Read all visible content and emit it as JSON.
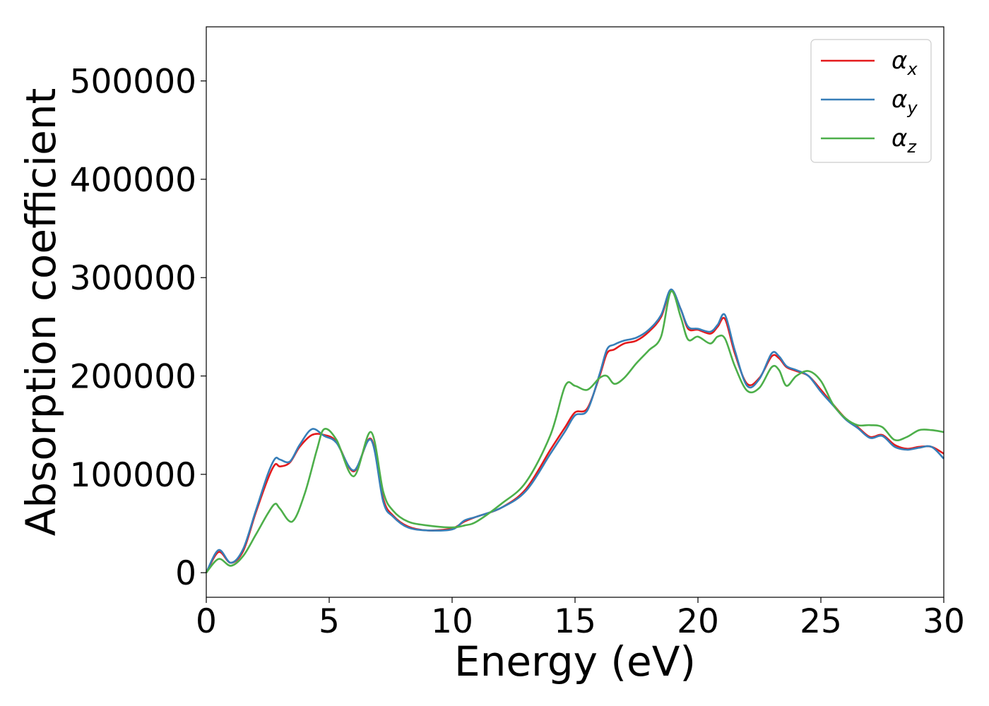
{
  "chart_data": {
    "type": "line",
    "xlabel": "Energy (eV)",
    "ylabel": "Absorption coefficient",
    "xlim": [
      0,
      30
    ],
    "ylim": [
      -25000,
      555000
    ],
    "x_ticks": [
      "0",
      "5",
      "10",
      "15",
      "20",
      "25",
      "30"
    ],
    "y_ticks": [
      "0",
      "100000",
      "200000",
      "300000",
      "400000",
      "500000"
    ],
    "grid": false,
    "legend_position": "top-right",
    "series": [
      {
        "name": "α",
        "subscript": "x",
        "color": "#e41a1c",
        "x": [
          0,
          0.5,
          1.0,
          1.5,
          2.0,
          2.5,
          2.8,
          3.0,
          3.4,
          3.8,
          4.3,
          4.8,
          5.3,
          6.0,
          6.7,
          7.2,
          7.6,
          8.2,
          9.0,
          10.0,
          10.5,
          11.0,
          12.0,
          13.0,
          14.0,
          14.6,
          15.0,
          15.5,
          16.0,
          16.3,
          16.6,
          17.0,
          17.5,
          18.0,
          18.5,
          18.9,
          19.3,
          19.6,
          20.0,
          20.5,
          20.8,
          21.1,
          21.5,
          22.0,
          22.5,
          23.0,
          23.3,
          23.6,
          24.0,
          24.5,
          25.0,
          25.5,
          26.0,
          26.5,
          27.0,
          27.5,
          28.0,
          28.5,
          29.0,
          29.5,
          30.0
        ],
        "y": [
          0,
          21000,
          10000,
          22000,
          60000,
          95000,
          110000,
          108000,
          112000,
          128000,
          140000,
          140000,
          133000,
          103000,
          136000,
          75000,
          58000,
          47000,
          43000,
          45000,
          52000,
          57000,
          66000,
          85000,
          125000,
          148000,
          163000,
          167000,
          200000,
          223000,
          227000,
          233000,
          236000,
          245000,
          260000,
          287000,
          268000,
          248000,
          247000,
          243000,
          250000,
          258000,
          223000,
          192000,
          198000,
          220000,
          218000,
          209000,
          205000,
          200000,
          186000,
          171000,
          157000,
          148000,
          138000,
          140000,
          130000,
          126000,
          128000,
          128000,
          121000
        ]
      },
      {
        "name": "α",
        "subscript": "y",
        "color": "#377eb8",
        "x": [
          0,
          0.5,
          1.0,
          1.5,
          2.0,
          2.5,
          2.8,
          3.0,
          3.4,
          3.8,
          4.3,
          4.8,
          5.3,
          6.0,
          6.7,
          7.2,
          7.6,
          8.2,
          9.0,
          10.0,
          10.5,
          11.0,
          12.0,
          13.0,
          14.0,
          14.6,
          15.0,
          15.5,
          16.0,
          16.3,
          16.6,
          17.0,
          17.5,
          18.0,
          18.5,
          18.9,
          19.3,
          19.6,
          20.0,
          20.5,
          20.8,
          21.1,
          21.5,
          22.0,
          22.5,
          23.0,
          23.3,
          23.6,
          24.0,
          24.5,
          25.0,
          25.5,
          26.0,
          26.5,
          27.0,
          27.5,
          28.0,
          28.5,
          29.0,
          29.5,
          30.0
        ],
        "y": [
          0,
          23000,
          10000,
          24000,
          62000,
          100000,
          116000,
          115000,
          113000,
          130000,
          146000,
          139000,
          132000,
          104000,
          135000,
          72000,
          57000,
          46000,
          43000,
          44000,
          53000,
          57000,
          66000,
          83000,
          121000,
          144000,
          160000,
          165000,
          202000,
          227000,
          232000,
          236000,
          239000,
          247000,
          262000,
          288000,
          268000,
          250000,
          248000,
          245000,
          252000,
          262000,
          226000,
          190000,
          197000,
          223000,
          220000,
          210000,
          206000,
          200000,
          184000,
          170000,
          156000,
          147000,
          137000,
          139000,
          128000,
          125000,
          127000,
          128000,
          116000
        ]
      },
      {
        "name": "α",
        "subscript": "z",
        "color": "#4daf4a",
        "x": [
          0,
          0.5,
          1.0,
          1.5,
          2.0,
          2.5,
          2.8,
          3.0,
          3.5,
          4.0,
          4.5,
          4.8,
          5.3,
          6.0,
          6.7,
          7.2,
          7.6,
          8.2,
          9.0,
          10.0,
          10.5,
          11.0,
          12.0,
          13.0,
          14.0,
          14.6,
          15.0,
          15.5,
          16.0,
          16.3,
          16.6,
          17.0,
          17.5,
          18.0,
          18.5,
          18.9,
          19.3,
          19.6,
          20.0,
          20.5,
          20.8,
          21.1,
          21.5,
          22.0,
          22.5,
          23.0,
          23.3,
          23.6,
          24.0,
          24.5,
          25.0,
          25.5,
          26.0,
          26.5,
          27.0,
          27.5,
          28.0,
          28.5,
          29.0,
          29.5,
          30.0
        ],
        "y": [
          0,
          14000,
          7000,
          17000,
          38000,
          60000,
          70000,
          65000,
          52000,
          80000,
          125000,
          146000,
          135000,
          98000,
          143000,
          82000,
          63000,
          52000,
          48000,
          46000,
          48000,
          52000,
          70000,
          92000,
          140000,
          190000,
          190000,
          186000,
          198000,
          200000,
          192000,
          198000,
          213000,
          226000,
          240000,
          286000,
          260000,
          237000,
          240000,
          233000,
          240000,
          238000,
          210000,
          185000,
          188000,
          209000,
          206000,
          190000,
          200000,
          205000,
          195000,
          171000,
          157000,
          150000,
          150000,
          148000,
          135000,
          138000,
          145000,
          145000,
          143000
        ]
      }
    ]
  }
}
